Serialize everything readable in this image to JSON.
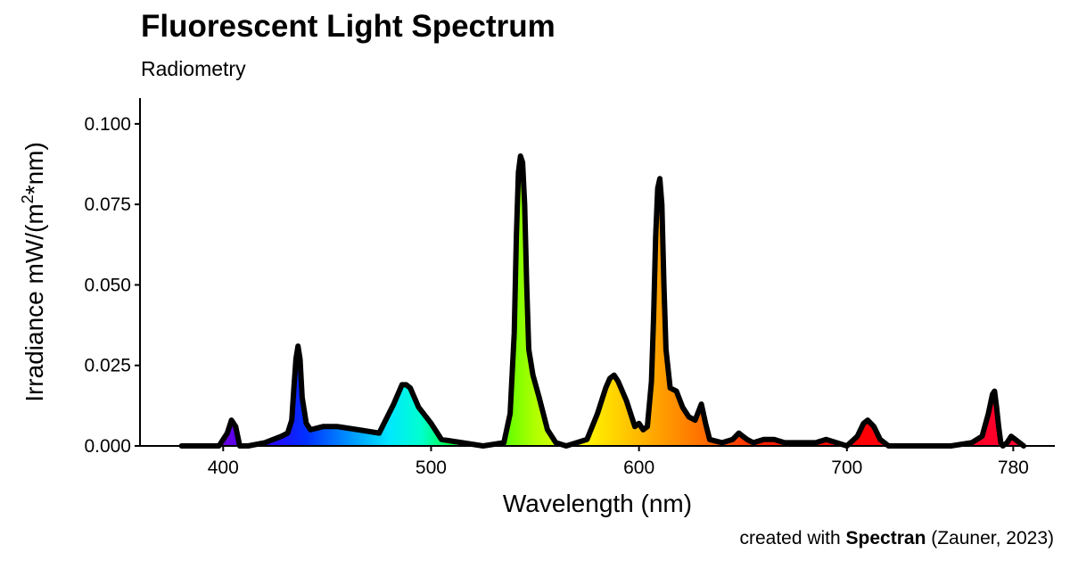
{
  "chart_data": {
    "type": "area",
    "title": "Fluorescent Light Spectrum",
    "subtitle": "Radiometry",
    "xlabel": "Wavelength (nm)",
    "ylabel_main": "Irradiance  mW/(m",
    "ylabel_sup": "2",
    "ylabel_end": "*nm)",
    "xlim": [
      360,
      800
    ],
    "ylim": [
      0,
      0.108
    ],
    "x_ticks": [
      400,
      500,
      600,
      700,
      780
    ],
    "x_tick_labels": [
      "400",
      "500",
      "600",
      "700",
      "780"
    ],
    "y_ticks": [
      0,
      0.025,
      0.05,
      0.075,
      0.1
    ],
    "y_tick_labels": [
      "0.000",
      "0.025",
      "0.050",
      "0.075",
      "0.100"
    ],
    "grid": false,
    "legend": "none",
    "fill": "wavelength-colored spectrum",
    "line_color": "#000000",
    "x": [
      380,
      390,
      398,
      402,
      404,
      406,
      408,
      412,
      420,
      428,
      431,
      433,
      434,
      435,
      436,
      437,
      438,
      440,
      442,
      448,
      455,
      465,
      475,
      482,
      486,
      488,
      490,
      494,
      500,
      505,
      515,
      525,
      535,
      538,
      540,
      541,
      542,
      543,
      544,
      545,
      546,
      547,
      549,
      552,
      556,
      560,
      565,
      575,
      580,
      584,
      586,
      588,
      590,
      594,
      596,
      598,
      600,
      602,
      604,
      606,
      607,
      608,
      609,
      610,
      611,
      612,
      613,
      615,
      618,
      621,
      624,
      627,
      630,
      632,
      634,
      640,
      645,
      648,
      650,
      652,
      655,
      660,
      665,
      670,
      675,
      680,
      685,
      690,
      695,
      700,
      705,
      708,
      710,
      713,
      716,
      720,
      725,
      730,
      740,
      750,
      760,
      765,
      768,
      770,
      771,
      772,
      773,
      774,
      775,
      777,
      779,
      781,
      783,
      785
    ],
    "y": [
      0,
      0,
      0,
      0.004,
      0.008,
      0.006,
      0,
      0,
      0.001,
      0.003,
      0.004,
      0.008,
      0.018,
      0.027,
      0.031,
      0.027,
      0.015,
      0.007,
      0.005,
      0.006,
      0.006,
      0.005,
      0.004,
      0.013,
      0.019,
      0.019,
      0.018,
      0.012,
      0.007,
      0.002,
      0.001,
      0,
      0.001,
      0.01,
      0.035,
      0.065,
      0.085,
      0.09,
      0.088,
      0.075,
      0.05,
      0.03,
      0.022,
      0.015,
      0.005,
      0.001,
      0,
      0.002,
      0.01,
      0.018,
      0.021,
      0.022,
      0.02,
      0.014,
      0.01,
      0.006,
      0.007,
      0.005,
      0.006,
      0.02,
      0.04,
      0.065,
      0.08,
      0.083,
      0.075,
      0.05,
      0.03,
      0.018,
      0.017,
      0.012,
      0.009,
      0.008,
      0.013,
      0.007,
      0.002,
      0.001,
      0.002,
      0.004,
      0.003,
      0.002,
      0.001,
      0.002,
      0.002,
      0.001,
      0.001,
      0.001,
      0.001,
      0.002,
      0.001,
      0,
      0.003,
      0.007,
      0.008,
      0.006,
      0.002,
      0,
      0,
      0,
      0,
      0,
      0.001,
      0.003,
      0.01,
      0.016,
      0.017,
      0.012,
      0.006,
      0.001,
      0,
      0.001,
      0.003,
      0.002,
      0.001,
      0
    ]
  },
  "caption": {
    "prefix": "created with ",
    "bold": "Spectran",
    "suffix": " (Zauner, 2023)"
  }
}
